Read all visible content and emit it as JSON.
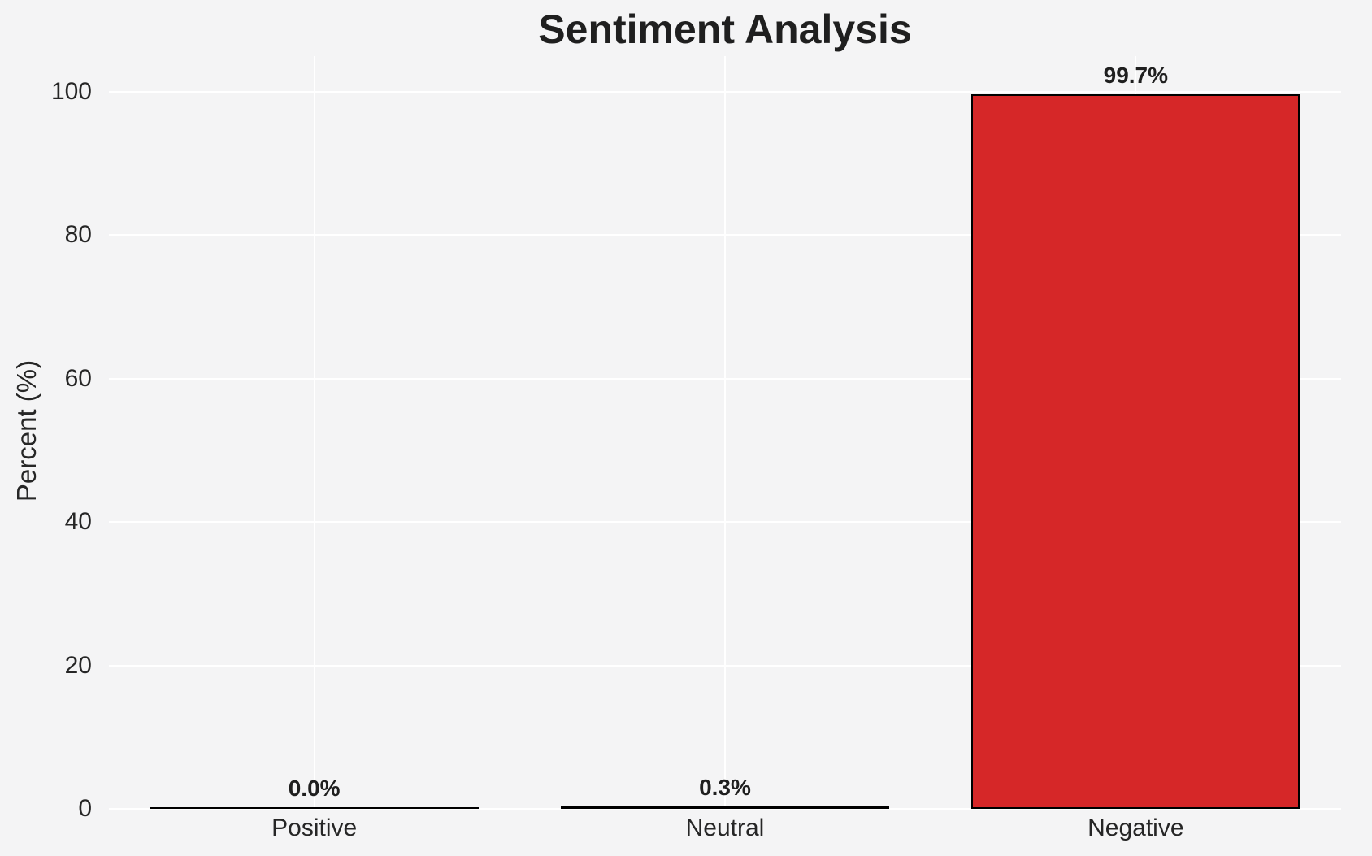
{
  "page": {
    "background_color": "#f4f4f5",
    "text_color": "#262626"
  },
  "chart_data": {
    "type": "bar",
    "title": "Sentiment Analysis",
    "categories": [
      "Positive",
      "Neutral",
      "Negative"
    ],
    "values": [
      0.0,
      0.3,
      99.7
    ],
    "value_labels": [
      "0.0%",
      "0.3%",
      "99.7%"
    ],
    "xlabel": "",
    "ylabel": "Percent (%)",
    "ylim": [
      0,
      105
    ],
    "yticks": [
      0,
      20,
      40,
      60,
      80,
      100
    ],
    "grid": true,
    "grid_color": "#ffffff",
    "legend": "none",
    "bar_fill_color": "#d62728",
    "bar_edge_color": "#000000",
    "bar_width_fraction": 0.8
  }
}
